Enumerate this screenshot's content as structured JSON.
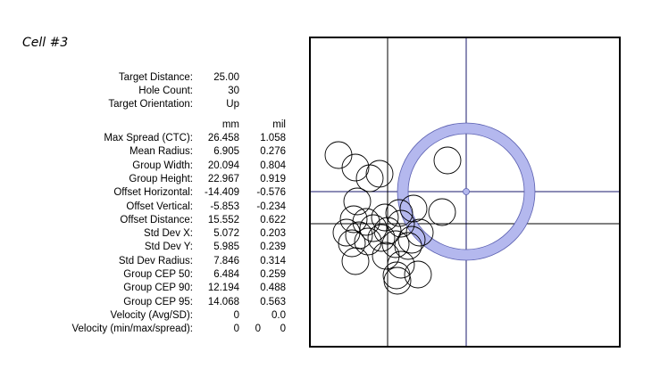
{
  "title": "Cell #3",
  "header_rows": [
    {
      "label": "Target Distance:",
      "value": "25.00"
    },
    {
      "label": "Hole Count:",
      "value": "30"
    },
    {
      "label": "Target Orientation:",
      "value": "Up"
    }
  ],
  "units": {
    "mm": "mm",
    "mil": "mil"
  },
  "stats_rows": [
    {
      "label": "Max Spread (CTC):",
      "mm": "26.458",
      "mil": "1.058"
    },
    {
      "label": "Mean Radius:",
      "mm": "6.905",
      "mil": "0.276"
    },
    {
      "label": "Group Width:",
      "mm": "20.094",
      "mil": "0.804"
    },
    {
      "label": "Group Height:",
      "mm": "22.967",
      "mil": "0.919"
    },
    {
      "label": "Offset Horizontal:",
      "mm": "-14.409",
      "mil": "-0.576"
    },
    {
      "label": "Offset Vertical:",
      "mm": "-5.853",
      "mil": "-0.234"
    },
    {
      "label": "Offset Distance:",
      "mm": "15.552",
      "mil": "0.622"
    },
    {
      "label": "Std Dev X:",
      "mm": "5.072",
      "mil": "0.203"
    },
    {
      "label": "Std Dev Y:",
      "mm": "5.985",
      "mil": "0.239"
    },
    {
      "label": "Std Dev Radius:",
      "mm": "7.846",
      "mil": "0.314"
    },
    {
      "label": "Group CEP 50:",
      "mm": "6.484",
      "mil": "0.259"
    },
    {
      "label": "Group CEP 90:",
      "mm": "12.194",
      "mil": "0.488"
    },
    {
      "label": "Group CEP 95:",
      "mm": "14.068",
      "mil": "0.563"
    },
    {
      "label": "Velocity (Avg/SD):",
      "mm": "0",
      "mil": "0.0"
    }
  ],
  "velocity_row": {
    "label": "Velocity (min/max/spread):",
    "min": "0",
    "max": "0",
    "spread": "0"
  },
  "target_colors": {
    "ring": "#b4b8ee",
    "ring_stroke": "#5a5fb0",
    "aim_line": "#1a1a6e",
    "group_line": "#000000"
  }
}
